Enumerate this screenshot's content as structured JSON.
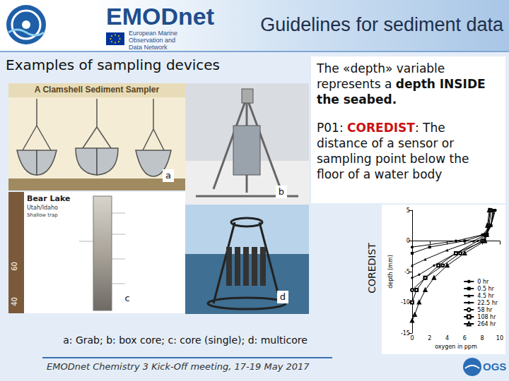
{
  "header": {
    "logo": {
      "name": "EMODnet",
      "lines": [
        "European Marine",
        "Observation and",
        "Data Network"
      ]
    },
    "title": "Guidelines for sediment data"
  },
  "section_title": "Examples of sampling devices",
  "notes": {
    "depth_note": [
      {
        "text": "The «depth» variable represents a ",
        "bold": false
      },
      {
        "text": "depth INSIDE the seabed.",
        "bold": true
      }
    ],
    "p01_note": [
      {
        "text": "P01: ",
        "bold": false
      },
      {
        "text": "COREDIST",
        "bold": true,
        "color": "#cc1111"
      },
      {
        "text": ": The distance of a sensor or sampling point below the floor of a water body",
        "bold": false
      }
    ],
    "side_label": "COREDIST"
  },
  "figures": [
    {
      "label": "a",
      "title": "A Clamshell Sediment Sampler"
    },
    {
      "label": "b"
    },
    {
      "label": "c",
      "texts": [
        "Bear Lake",
        "Utah/Idaho",
        "Shallow trap",
        "60",
        "40"
      ]
    },
    {
      "label": "d"
    }
  ],
  "caption": "a: Grab; b: box core; c: core (single); d: multicore",
  "footer": "EMODnet Chemistry 3 Kick-Off meeting, 17-19 May 2017",
  "badge": "OGS",
  "chart_data": {
    "type": "line",
    "x_label": "oxygen in ppm",
    "y_label": "depth (mm)",
    "xlim": [
      0,
      10
    ],
    "xticks": [
      0,
      2,
      4,
      6,
      8,
      10
    ],
    "ylim": [
      -15,
      5
    ],
    "yticks": [
      -15,
      -10,
      -5,
      0,
      5
    ],
    "legend": "bottom-right",
    "color": "#000000",
    "series": [
      {
        "name": "0 hr",
        "marker": "circle",
        "x": [
          9.5,
          9,
          8,
          5,
          0
        ],
        "y": [
          5,
          2.5,
          1,
          0,
          -1
        ]
      },
      {
        "name": "0.5 hr",
        "marker": "square",
        "x": [
          9.4,
          9,
          8.2,
          6,
          2,
          0
        ],
        "y": [
          5,
          2.5,
          1,
          0,
          -1,
          -2
        ]
      },
      {
        "name": "4.5 hr",
        "marker": "triangle",
        "x": [
          9.3,
          9,
          8.4,
          7,
          4,
          1.5,
          0
        ],
        "y": [
          5,
          2.5,
          1,
          0,
          -1.5,
          -3,
          -4
        ]
      },
      {
        "name": "22.5 hr",
        "marker": "diamond",
        "x": [
          9.2,
          9,
          8.5,
          7.5,
          5,
          2.5,
          0.8,
          0
        ],
        "y": [
          5,
          2.5,
          1,
          0,
          -2,
          -4,
          -5.5,
          -6
        ]
      },
      {
        "name": "58 hr",
        "marker": "circle_open",
        "x": [
          9,
          8.8,
          8.5,
          8,
          5.5,
          3.5,
          1.5,
          0
        ],
        "y": [
          5,
          2.5,
          1,
          0,
          -2,
          -4,
          -6,
          -8
        ]
      },
      {
        "name": "108 hr",
        "marker": "square_open",
        "x": [
          8.9,
          8.7,
          8.5,
          8.2,
          5,
          3,
          1.5,
          0.5,
          0
        ],
        "y": [
          5,
          2.5,
          1,
          0,
          -2,
          -4,
          -6,
          -8,
          -10
        ]
      },
      {
        "name": "264 hr",
        "marker": "triangle_open",
        "x": [
          8.8,
          8.6,
          8.5,
          8.3,
          6,
          4,
          2.5,
          1.5,
          0.8,
          0.3,
          0
        ],
        "y": [
          5,
          2.5,
          1,
          0,
          -2,
          -4,
          -6,
          -8,
          -10,
          -12,
          -13
        ]
      }
    ]
  }
}
